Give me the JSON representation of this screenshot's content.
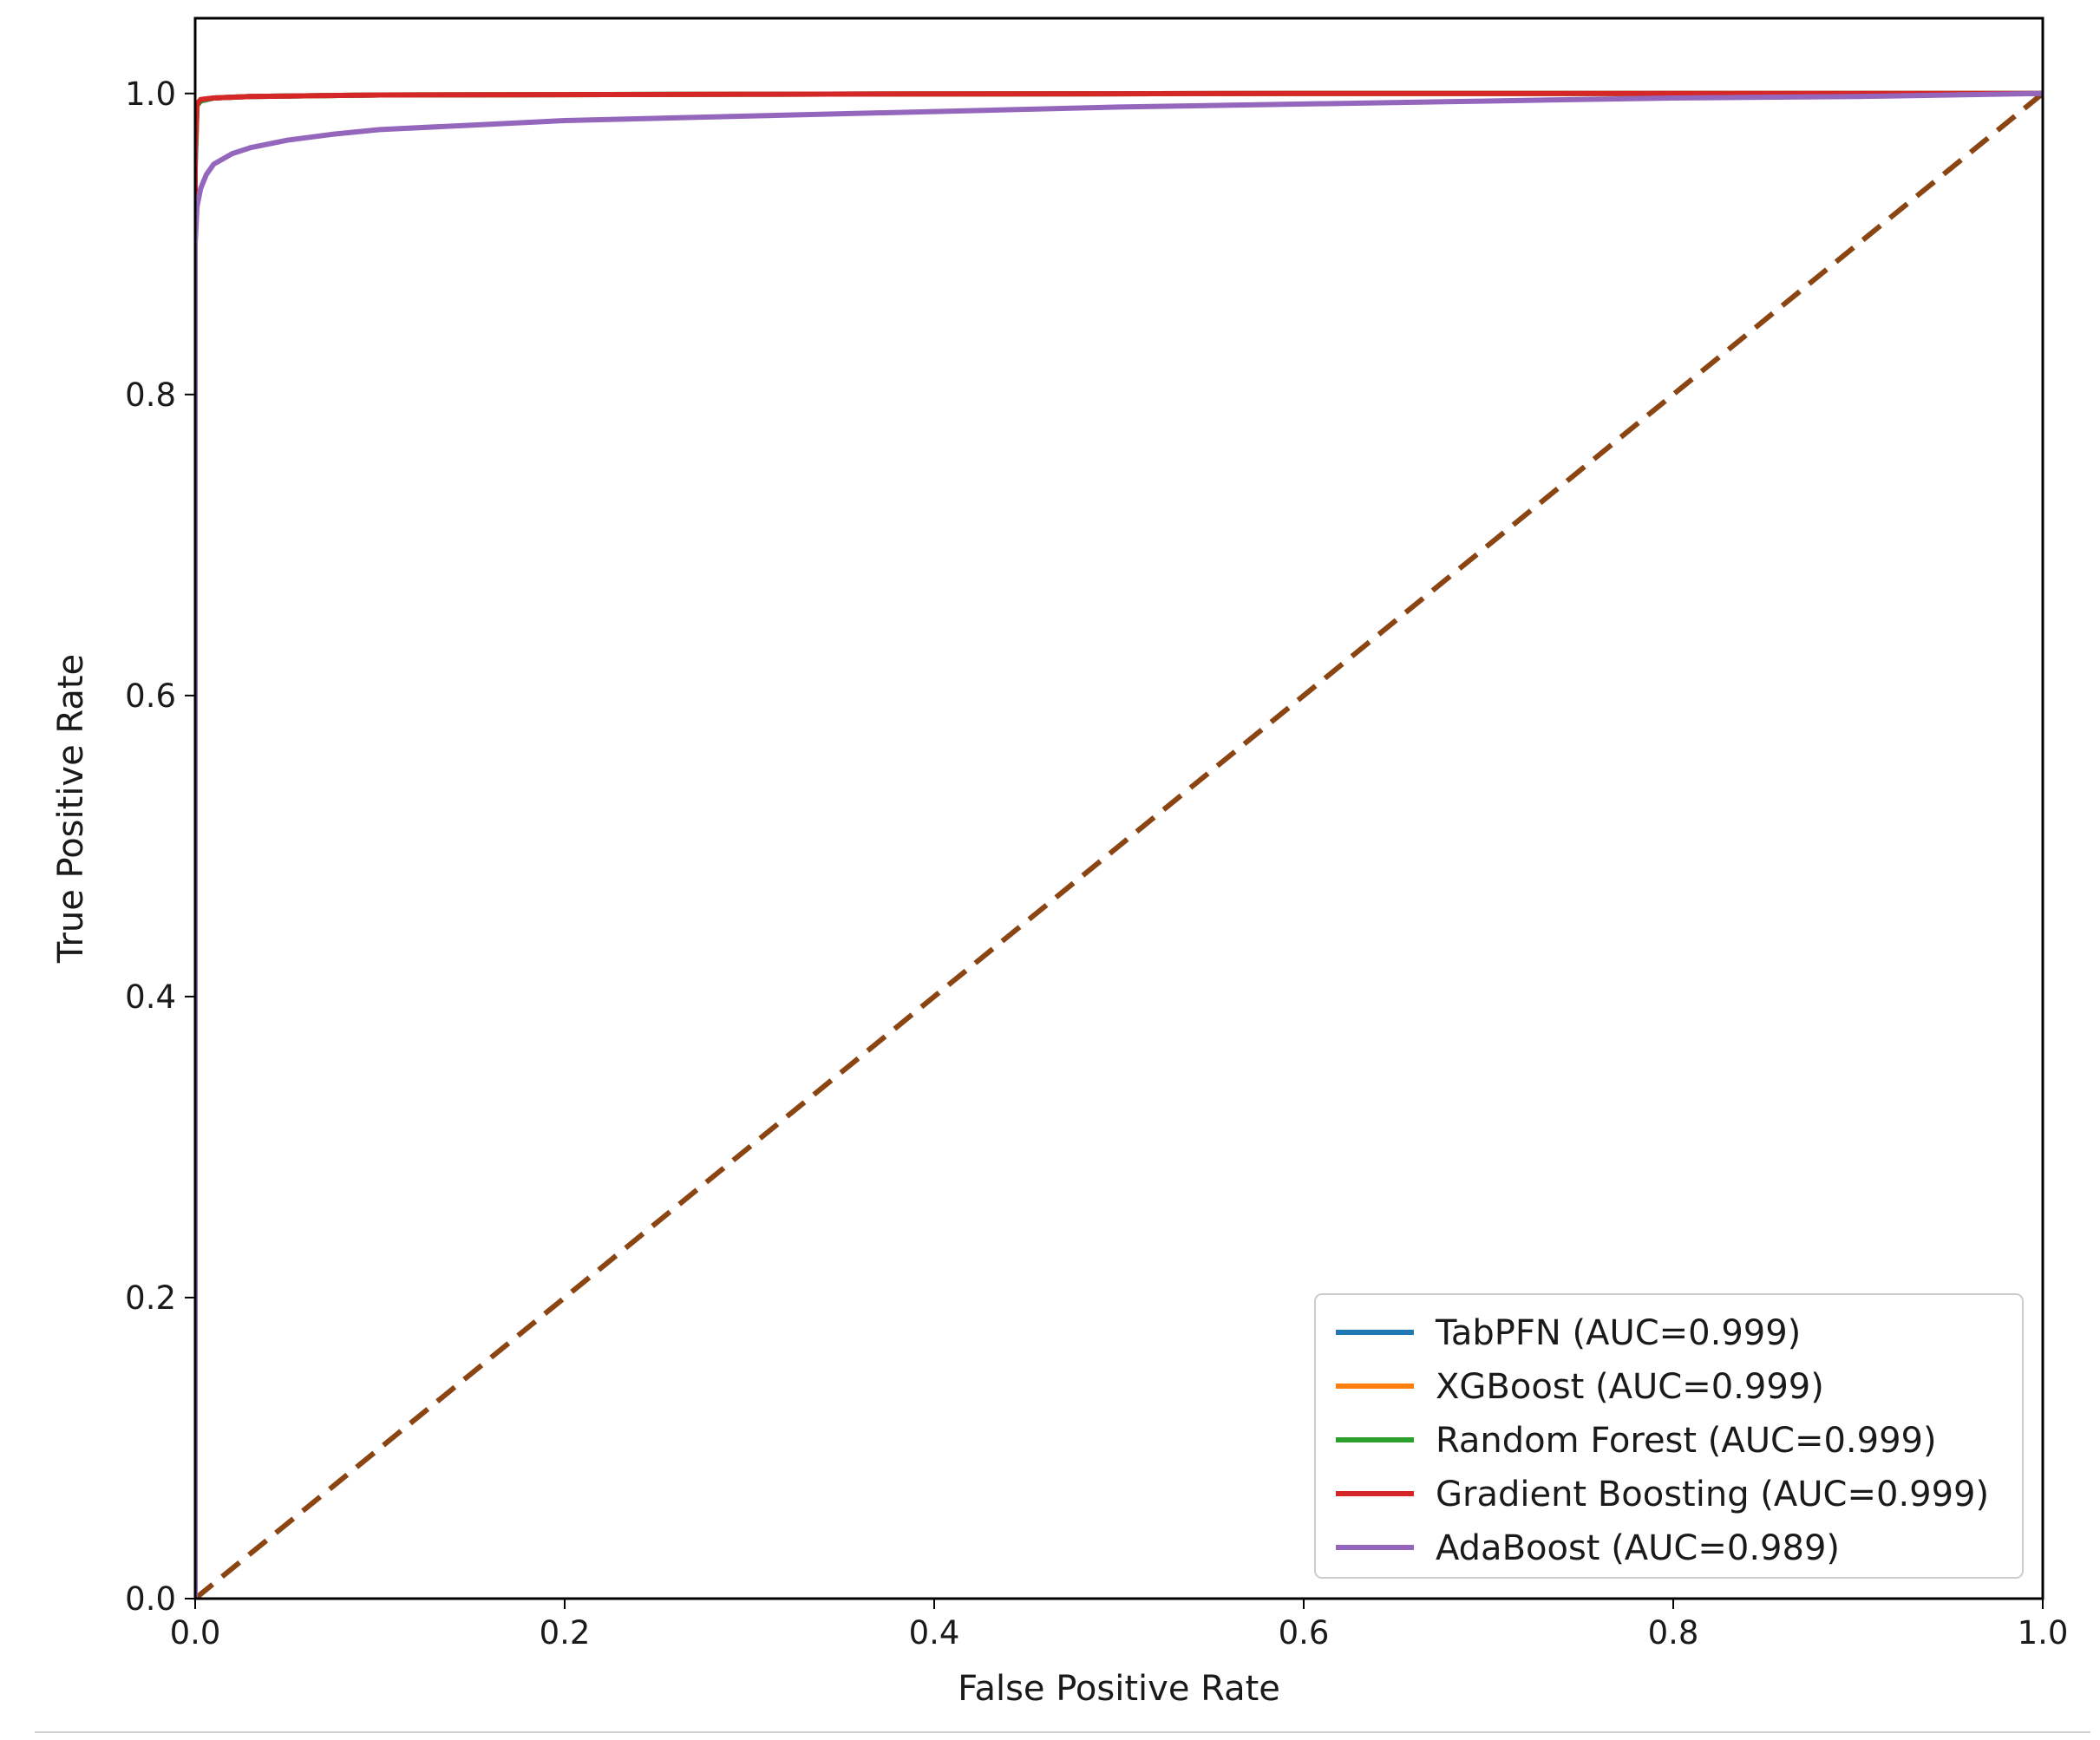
{
  "chart_data": {
    "type": "line",
    "title": "",
    "xlabel": "False Positive Rate",
    "ylabel": "True Positive Rate",
    "xlim": [
      0.0,
      1.0
    ],
    "ylim": [
      0.0,
      1.05
    ],
    "xticks": [
      {
        "value": 0.0,
        "label": "0.0"
      },
      {
        "value": 0.2,
        "label": "0.2"
      },
      {
        "value": 0.4,
        "label": "0.4"
      },
      {
        "value": 0.6,
        "label": "0.6"
      },
      {
        "value": 0.8,
        "label": "0.8"
      },
      {
        "value": 1.0,
        "label": "1.0"
      }
    ],
    "yticks": [
      {
        "value": 0.0,
        "label": "0.0"
      },
      {
        "value": 0.2,
        "label": "0.2"
      },
      {
        "value": 0.4,
        "label": "0.4"
      },
      {
        "value": 0.6,
        "label": "0.6"
      },
      {
        "value": 0.8,
        "label": "0.8"
      },
      {
        "value": 1.0,
        "label": "1.0"
      }
    ],
    "grid": false,
    "legend": {
      "placement": "lower-right"
    },
    "series": [
      {
        "name": "TabPFN (AUC=0.999)",
        "color": "#1f77b4",
        "x": [
          0,
          0,
          0.001,
          0.003,
          0.01,
          0.03,
          0.1,
          0.3,
          0.6,
          1.0
        ],
        "y": [
          0,
          0.95,
          0.992,
          0.995,
          0.997,
          0.998,
          0.999,
          0.9995,
          1.0,
          1.0
        ]
      },
      {
        "name": "XGBoost (AUC=0.999)",
        "color": "#ff7f0e",
        "x": [
          0,
          0,
          0.001,
          0.003,
          0.01,
          0.03,
          0.1,
          0.3,
          0.6,
          1.0
        ],
        "y": [
          0,
          0.96,
          0.993,
          0.996,
          0.997,
          0.998,
          0.999,
          0.9995,
          1.0,
          1.0
        ]
      },
      {
        "name": "Random Forest (AUC=0.999)",
        "color": "#2ca02c",
        "x": [
          0,
          0,
          0.001,
          0.003,
          0.01,
          0.03,
          0.1,
          0.3,
          0.6,
          1.0
        ],
        "y": [
          0,
          0.955,
          0.992,
          0.995,
          0.997,
          0.998,
          0.999,
          0.9995,
          1.0,
          1.0
        ]
      },
      {
        "name": "Gradient Boosting (AUC=0.999)",
        "color": "#d62728",
        "x": [
          0,
          0,
          0.001,
          0.003,
          0.01,
          0.03,
          0.1,
          0.3,
          0.6,
          1.0
        ],
        "y": [
          0,
          0.96,
          0.993,
          0.996,
          0.997,
          0.998,
          0.999,
          0.9995,
          1.0,
          1.0
        ]
      },
      {
        "name": "AdaBoost (AUC=0.989)",
        "color": "#9467bd",
        "x": [
          0,
          0,
          0.001,
          0.003,
          0.006,
          0.01,
          0.02,
          0.03,
          0.05,
          0.075,
          0.1,
          0.15,
          0.2,
          0.3,
          0.4,
          0.5,
          0.6,
          0.7,
          0.8,
          0.9,
          1.0
        ],
        "y": [
          0,
          0.9,
          0.925,
          0.937,
          0.946,
          0.953,
          0.96,
          0.964,
          0.969,
          0.973,
          0.976,
          0.979,
          0.982,
          0.985,
          0.988,
          0.991,
          0.993,
          0.995,
          0.997,
          0.998,
          1.0
        ]
      }
    ],
    "reference_line": {
      "color": "#8b4513",
      "style": "dashed",
      "x": [
        0,
        1
      ],
      "y": [
        0,
        1
      ]
    }
  }
}
